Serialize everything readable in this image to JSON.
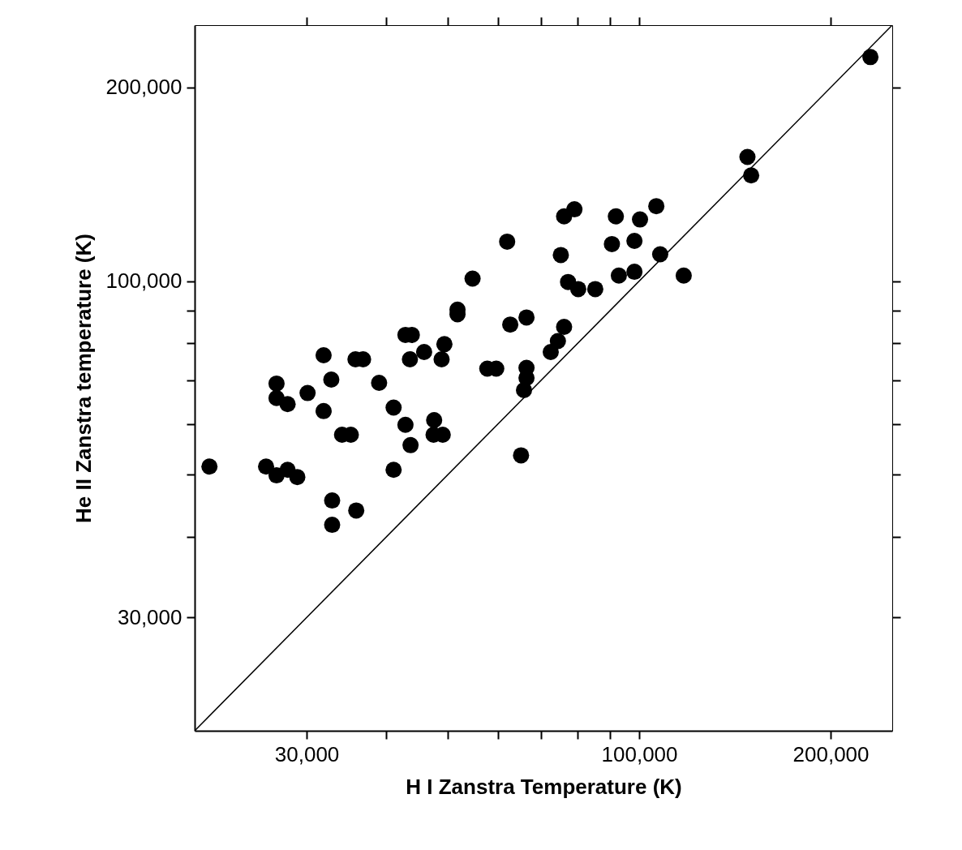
{
  "chart_data": {
    "type": "scatter",
    "xlabel": "H I Zanstra Temperature (K)",
    "ylabel": "He II Zanstra temperature (K)",
    "log": "xy",
    "grid": false,
    "xlim": [
      20000,
      250000
    ],
    "ylim": [
      20000,
      250000
    ],
    "xticks": [
      {
        "value": 30000,
        "label": "30,000"
      },
      {
        "value": 40000,
        "label": null
      },
      {
        "value": 50000,
        "label": null
      },
      {
        "value": 60000,
        "label": null
      },
      {
        "value": 70000,
        "label": null
      },
      {
        "value": 80000,
        "label": null
      },
      {
        "value": 90000,
        "label": null
      },
      {
        "value": 100000,
        "label": "100,000"
      },
      {
        "value": 200000,
        "label": "200,000"
      }
    ],
    "yticks": [
      {
        "value": 30000,
        "label": "30,000"
      },
      {
        "value": 40000,
        "label": null
      },
      {
        "value": 50000,
        "label": null
      },
      {
        "value": 60000,
        "label": null
      },
      {
        "value": 70000,
        "label": null
      },
      {
        "value": 80000,
        "label": null
      },
      {
        "value": 90000,
        "label": null
      },
      {
        "value": 100000,
        "label": "100,000"
      },
      {
        "value": 200000,
        "label": "200,000"
      }
    ],
    "series": [
      {
        "color": "#000000",
        "marker": "circle",
        "x": [
          21100,
          25900,
          28000,
          26900,
          29000,
          26900,
          26900,
          28000,
          30100,
          31900,
          32800,
          31900,
          34100,
          35200,
          35800,
          36800,
          32900,
          35900,
          32900,
          39000,
          41100,
          42900,
          43700,
          41100,
          42900,
          43900,
          43600,
          45900,
          62000,
          54700,
          75300,
          77300,
          80200,
          76200,
          79100,
          51800,
          51800,
          62700,
          66500,
          49400,
          48900,
          57700,
          59600,
          66500,
          66500,
          65900,
          76200,
          74500,
          72600,
          47600,
          47500,
          49100,
          65200,
          91900,
          100300,
          106400,
          90600,
          98300,
          107900,
          85300,
          92900,
          98300,
          117500,
          231000,
          148000,
          150000
        ],
        "values": [
          51500,
          51500,
          50900,
          49900,
          49600,
          69300,
          65800,
          64400,
          67000,
          76700,
          70300,
          62800,
          57700,
          57700,
          75600,
          75600,
          45600,
          44000,
          41800,
          69500,
          63600,
          59800,
          55600,
          50900,
          82500,
          82500,
          75600,
          77600,
          115200,
          100900,
          109800,
          99700,
          97200,
          126100,
          129300,
          90300,
          88800,
          85600,
          87800,
          79800,
          75600,
          73100,
          73100,
          73300,
          70700,
          67700,
          84900,
          80700,
          77600,
          60800,
          57700,
          57700,
          53600,
          126100,
          124700,
          130800,
          114200,
          115500,
          110100,
          97200,
          102000,
          103400,
          102000,
          223000,
          156000,
          146000
        ]
      },
      {
        "type": "line",
        "color": "#000000",
        "marker": "none",
        "x": [
          20000,
          250000
        ],
        "values": [
          20000,
          250000
        ]
      }
    ]
  }
}
